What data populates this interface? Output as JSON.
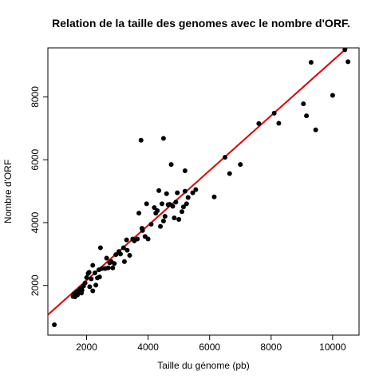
{
  "chart_data": {
    "type": "scatter",
    "title": "Relation de la taille des genomes avec le nombre d'ORF.",
    "xlabel": "Taille du génome (pb)",
    "ylabel": "Nombre d'ORF",
    "xlim": [
      740,
      10860
    ],
    "ylim": [
      420,
      9560
    ],
    "x_ticks": [
      2000,
      4000,
      6000,
      8000,
      10000
    ],
    "y_ticks": [
      2000,
      4000,
      6000,
      8000
    ],
    "x_tick_labels": [
      "2000",
      "4000",
      "6000",
      "8000",
      "10000"
    ],
    "y_tick_labels": [
      "2000",
      "4000",
      "6000",
      "8000"
    ],
    "grid": false,
    "point_color": "#000000",
    "line_color": "#dd0000",
    "regression_line": {
      "intercept": 420,
      "slope": 0.873
    },
    "points": [
      {
        "x": 950,
        "y": 750
      },
      {
        "x": 1560,
        "y": 1650
      },
      {
        "x": 1580,
        "y": 1720
      },
      {
        "x": 1620,
        "y": 1640
      },
      {
        "x": 1650,
        "y": 1780
      },
      {
        "x": 1700,
        "y": 1700
      },
      {
        "x": 1720,
        "y": 1820
      },
      {
        "x": 1800,
        "y": 1900
      },
      {
        "x": 1830,
        "y": 1760
      },
      {
        "x": 1850,
        "y": 1850
      },
      {
        "x": 1900,
        "y": 1980
      },
      {
        "x": 1950,
        "y": 2080
      },
      {
        "x": 2000,
        "y": 2250
      },
      {
        "x": 2050,
        "y": 2380
      },
      {
        "x": 2080,
        "y": 2420
      },
      {
        "x": 2100,
        "y": 1960
      },
      {
        "x": 2150,
        "y": 2210
      },
      {
        "x": 2200,
        "y": 2640
      },
      {
        "x": 2200,
        "y": 1830
      },
      {
        "x": 2270,
        "y": 2400
      },
      {
        "x": 2300,
        "y": 2010
      },
      {
        "x": 2350,
        "y": 2240
      },
      {
        "x": 2400,
        "y": 2500
      },
      {
        "x": 2420,
        "y": 2270
      },
      {
        "x": 2450,
        "y": 3200
      },
      {
        "x": 2500,
        "y": 2540
      },
      {
        "x": 2600,
        "y": 2540
      },
      {
        "x": 2650,
        "y": 2870
      },
      {
        "x": 2700,
        "y": 2560
      },
      {
        "x": 2750,
        "y": 2720
      },
      {
        "x": 2800,
        "y": 2760
      },
      {
        "x": 2850,
        "y": 2560
      },
      {
        "x": 2900,
        "y": 2700
      },
      {
        "x": 2950,
        "y": 2980
      },
      {
        "x": 3050,
        "y": 3080
      },
      {
        "x": 3100,
        "y": 3000
      },
      {
        "x": 3200,
        "y": 3200
      },
      {
        "x": 3230,
        "y": 2760
      },
      {
        "x": 3300,
        "y": 3450
      },
      {
        "x": 3320,
        "y": 3120
      },
      {
        "x": 3400,
        "y": 2960
      },
      {
        "x": 3500,
        "y": 3480
      },
      {
        "x": 3550,
        "y": 3420
      },
      {
        "x": 3650,
        "y": 3480
      },
      {
        "x": 3700,
        "y": 4300
      },
      {
        "x": 3800,
        "y": 3820
      },
      {
        "x": 3820,
        "y": 3750
      },
      {
        "x": 3900,
        "y": 3560
      },
      {
        "x": 3950,
        "y": 4600
      },
      {
        "x": 4000,
        "y": 3480
      },
      {
        "x": 4100,
        "y": 3950
      },
      {
        "x": 4200,
        "y": 4480
      },
      {
        "x": 4250,
        "y": 4300
      },
      {
        "x": 4300,
        "y": 4380
      },
      {
        "x": 4350,
        "y": 5020
      },
      {
        "x": 4400,
        "y": 3880
      },
      {
        "x": 4450,
        "y": 4600
      },
      {
        "x": 4500,
        "y": 4050
      },
      {
        "x": 4550,
        "y": 4200
      },
      {
        "x": 4600,
        "y": 4920
      },
      {
        "x": 4650,
        "y": 4570
      },
      {
        "x": 4700,
        "y": 4580
      },
      {
        "x": 4750,
        "y": 5850
      },
      {
        "x": 4800,
        "y": 4520
      },
      {
        "x": 4850,
        "y": 4150
      },
      {
        "x": 4900,
        "y": 4650
      },
      {
        "x": 4950,
        "y": 4950
      },
      {
        "x": 5000,
        "y": 4100
      },
      {
        "x": 5100,
        "y": 4350
      },
      {
        "x": 5150,
        "y": 4500
      },
      {
        "x": 5200,
        "y": 5000
      },
      {
        "x": 5250,
        "y": 4600
      },
      {
        "x": 5300,
        "y": 4800
      },
      {
        "x": 5200,
        "y": 5650
      },
      {
        "x": 5450,
        "y": 4950
      },
      {
        "x": 5550,
        "y": 5050
      },
      {
        "x": 3770,
        "y": 6620
      },
      {
        "x": 4500,
        "y": 6680
      },
      {
        "x": 6150,
        "y": 4820
      },
      {
        "x": 6500,
        "y": 6080
      },
      {
        "x": 6650,
        "y": 5560
      },
      {
        "x": 7000,
        "y": 5850
      },
      {
        "x": 7600,
        "y": 7150
      },
      {
        "x": 8100,
        "y": 7480
      },
      {
        "x": 8250,
        "y": 7160
      },
      {
        "x": 9050,
        "y": 7780
      },
      {
        "x": 9150,
        "y": 7400
      },
      {
        "x": 9300,
        "y": 9100
      },
      {
        "x": 9450,
        "y": 6950
      },
      {
        "x": 10000,
        "y": 8050
      },
      {
        "x": 10400,
        "y": 9500
      },
      {
        "x": 10500,
        "y": 9120
      }
    ]
  }
}
